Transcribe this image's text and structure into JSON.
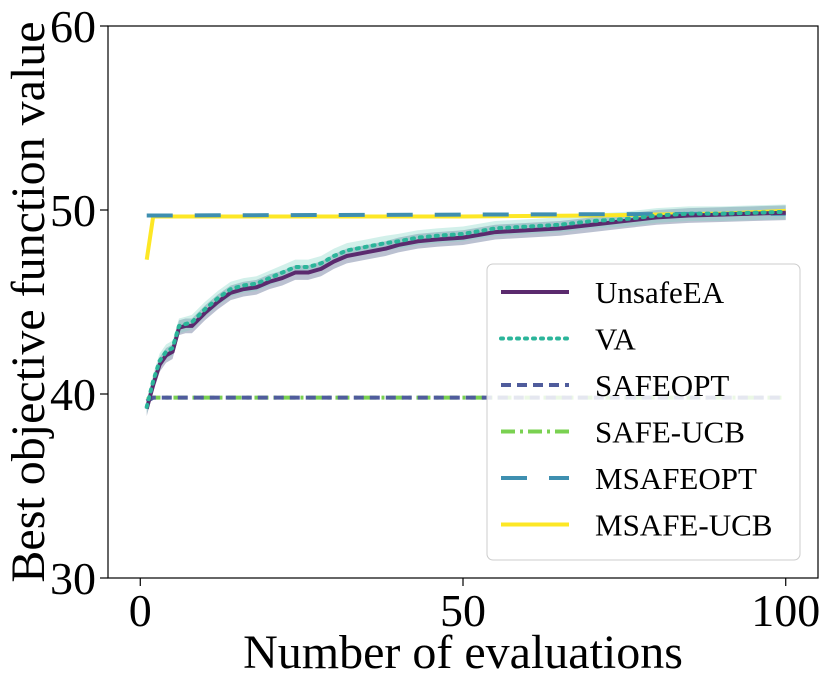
{
  "chart_data": {
    "type": "line",
    "xlabel": "Number of evaluations",
    "ylabel": "Best objective function value",
    "xlim": [
      -5,
      105
    ],
    "ylim": [
      30,
      60
    ],
    "xticks": [
      "0",
      "50",
      "100"
    ],
    "yticks": [
      "30",
      "40",
      "50",
      "60"
    ],
    "xtick_values": [
      0,
      50,
      100
    ],
    "ytick_values": [
      30,
      40,
      50,
      60
    ],
    "legend_position": "lower right",
    "grid": false,
    "series": [
      {
        "name": "UnsafeEA",
        "color": "#5b2a6e",
        "style": "solid",
        "band_color": "#3b4e7a",
        "band": 0.4,
        "x": [
          1,
          2,
          3,
          4,
          5,
          6,
          7,
          8,
          10,
          12,
          14,
          16,
          18,
          20,
          22,
          24,
          26,
          28,
          30,
          32,
          35,
          38,
          40,
          43,
          46,
          50,
          55,
          60,
          65,
          70,
          75,
          80,
          85,
          90,
          95,
          100
        ],
        "y": [
          39.2,
          40.5,
          41.6,
          42.1,
          42.3,
          43.6,
          43.7,
          43.7,
          44.4,
          45.0,
          45.5,
          45.7,
          45.8,
          46.1,
          46.3,
          46.6,
          46.6,
          46.8,
          47.2,
          47.5,
          47.7,
          47.9,
          48.1,
          48.3,
          48.4,
          48.5,
          48.8,
          48.9,
          49.0,
          49.2,
          49.4,
          49.6,
          49.7,
          49.75,
          49.8,
          49.85
        ]
      },
      {
        "name": "VA",
        "color": "#2bb59a",
        "style": "dotted",
        "band_color": "#7fd3c3",
        "band": 0.4,
        "x": [
          1,
          2,
          3,
          4,
          5,
          6,
          7,
          8,
          10,
          12,
          14,
          16,
          18,
          20,
          22,
          24,
          26,
          28,
          30,
          32,
          35,
          38,
          40,
          43,
          46,
          50,
          55,
          60,
          65,
          70,
          75,
          80,
          85,
          90,
          95,
          100
        ],
        "y": [
          39.3,
          40.7,
          41.8,
          42.3,
          42.5,
          43.7,
          43.8,
          43.9,
          44.6,
          45.2,
          45.7,
          45.9,
          46.0,
          46.3,
          46.6,
          46.9,
          46.9,
          47.1,
          47.5,
          47.8,
          48.0,
          48.2,
          48.3,
          48.5,
          48.6,
          48.7,
          49.0,
          49.1,
          49.2,
          49.4,
          49.5,
          49.7,
          49.8,
          49.8,
          49.85,
          49.9
        ]
      },
      {
        "name": "SAFEOPT",
        "color": "#4f5c9c",
        "style": "dashed",
        "x": [
          1,
          2,
          100
        ],
        "y": [
          39.6,
          39.8,
          39.8
        ]
      },
      {
        "name": "SAFE-UCB",
        "color": "#7ad151",
        "style": "dashdot",
        "x": [
          1,
          2,
          100
        ],
        "y": [
          39.7,
          39.8,
          39.8
        ]
      },
      {
        "name": "MSAFEOPT",
        "color": "#3e8fb0",
        "style": "longdash",
        "x": [
          1,
          100
        ],
        "y": [
          49.7,
          49.8
        ]
      },
      {
        "name": "MSAFE-UCB",
        "color": "#fde725",
        "style": "solid",
        "x": [
          1,
          2,
          50,
          70,
          90,
          100
        ],
        "y": [
          47.3,
          49.65,
          49.65,
          49.7,
          49.8,
          49.95
        ]
      }
    ]
  }
}
